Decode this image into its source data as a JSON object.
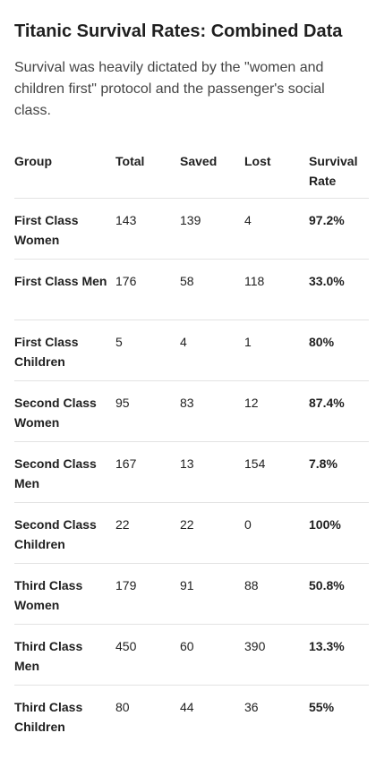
{
  "header": {
    "title": "Titanic Survival Rates: Combined Data",
    "description": "Survival was heavily dictated by the \"women and children first\" protocol and the passenger's social class."
  },
  "table": {
    "columns": [
      "Group",
      "Total",
      "Saved",
      "Lost",
      "Survival Rate"
    ],
    "rows": [
      [
        "First Class Women",
        "143",
        "139",
        "4",
        "97.2%"
      ],
      [
        "First Class Men",
        "176",
        "58",
        "118",
        "33.0%"
      ],
      [
        "First Class Children",
        "5",
        "4",
        "1",
        "80%"
      ],
      [
        "Second Class Women",
        "95",
        "83",
        "12",
        "87.4%"
      ],
      [
        "Second Class Men",
        "167",
        "13",
        "154",
        "7.8%"
      ],
      [
        "Second Class Children",
        "22",
        "22",
        "0",
        "100%"
      ],
      [
        "Third Class Women",
        "179",
        "91",
        "88",
        "50.8%"
      ],
      [
        "Third Class Men",
        "450",
        "60",
        "390",
        "13.3%"
      ],
      [
        "Third Class Children",
        "80",
        "44",
        "36",
        "55%"
      ]
    ]
  }
}
